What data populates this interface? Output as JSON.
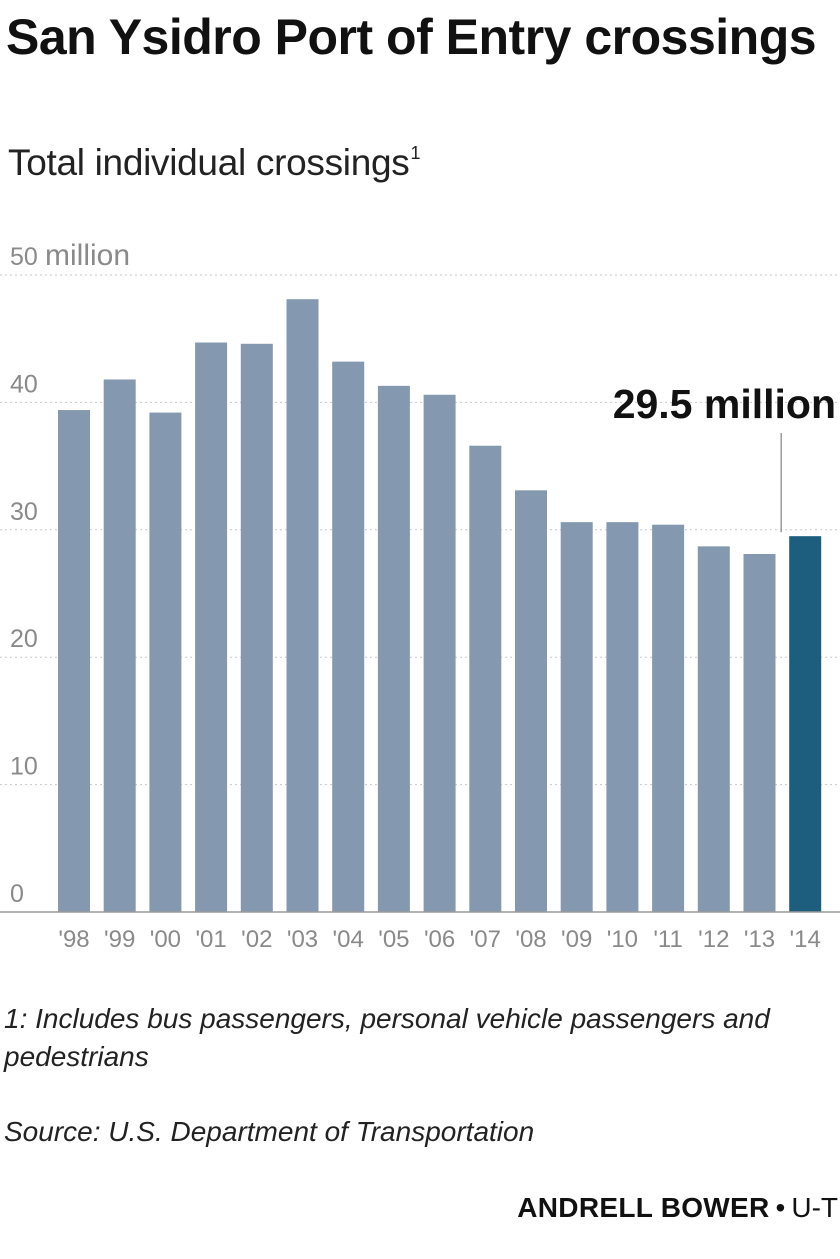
{
  "header": {
    "title": "San Ysidro Port of Entry crossings",
    "subtitle": "Total individual crossings",
    "subtitle_note_mark": "1"
  },
  "chart_data": {
    "type": "bar",
    "title": "San Ysidro Port of Entry crossings",
    "subtitle": "Total individual crossings",
    "xlabel": "",
    "ylabel": "",
    "y_unit_label": "million",
    "ylim": [
      0,
      50
    ],
    "yticks": [
      0,
      10,
      20,
      30,
      40,
      50
    ],
    "grid": true,
    "categories": [
      "'98",
      "'99",
      "'00",
      "'01",
      "'02",
      "'03",
      "'04",
      "'05",
      "'06",
      "'07",
      "'08",
      "'09",
      "'10",
      "'11",
      "'12",
      "'13",
      "'14"
    ],
    "values": [
      39.4,
      41.8,
      39.2,
      44.7,
      44.6,
      48.1,
      43.2,
      41.3,
      40.6,
      36.6,
      33.1,
      30.6,
      30.6,
      30.4,
      28.7,
      28.1,
      29.5
    ],
    "highlight_index": 16,
    "annotation": {
      "index": 16,
      "text": "29.5 million"
    },
    "colors": {
      "bar": "#8499b0",
      "highlight": "#1d5e7e",
      "axis": "#9a9a9a",
      "grid": "#c8c8c8",
      "tick_text": "#8a8a8a"
    }
  },
  "footer": {
    "footnote": "1: Includes bus passengers, personal vehicle passengers and pedestrians",
    "source": "Source: U.S. Department of Transportation",
    "credit_name": "ANDRELL BOWER",
    "credit_sep": "•",
    "credit_org": "U-T"
  }
}
